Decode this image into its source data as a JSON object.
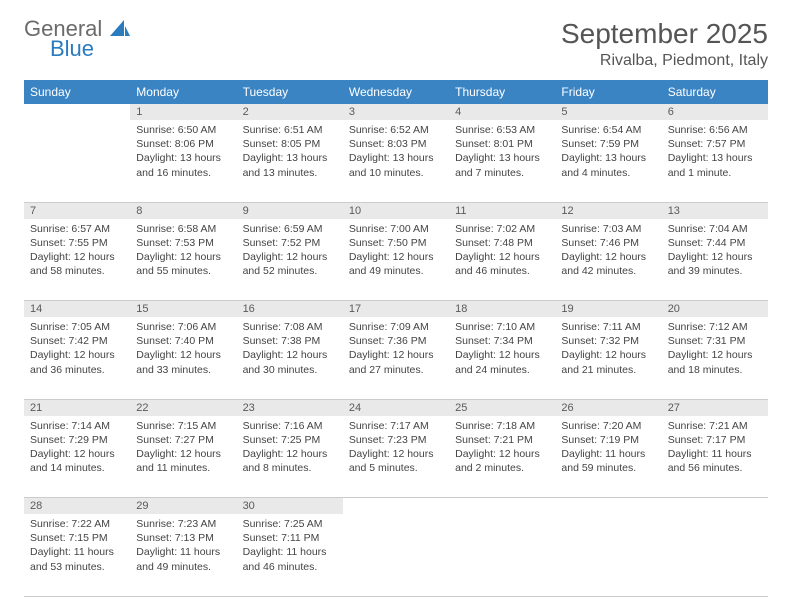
{
  "brand": {
    "name1": "General",
    "name2": "Blue",
    "accent": "#2b7bbf",
    "grey": "#6b6b6b"
  },
  "title": "September 2025",
  "location": "Rivalba, Piedmont, Italy",
  "header_bg": "#3a84c4",
  "daynum_bg": "#e9e9e9",
  "weekdays": [
    "Sunday",
    "Monday",
    "Tuesday",
    "Wednesday",
    "Thursday",
    "Friday",
    "Saturday"
  ],
  "weeks": [
    {
      "nums": [
        "",
        "1",
        "2",
        "3",
        "4",
        "5",
        "6"
      ],
      "cells": [
        {
          "empty": true
        },
        {
          "sunrise": "6:50 AM",
          "sunset": "8:06 PM",
          "daylight": "13 hours and 16 minutes."
        },
        {
          "sunrise": "6:51 AM",
          "sunset": "8:05 PM",
          "daylight": "13 hours and 13 minutes."
        },
        {
          "sunrise": "6:52 AM",
          "sunset": "8:03 PM",
          "daylight": "13 hours and 10 minutes."
        },
        {
          "sunrise": "6:53 AM",
          "sunset": "8:01 PM",
          "daylight": "13 hours and 7 minutes."
        },
        {
          "sunrise": "6:54 AM",
          "sunset": "7:59 PM",
          "daylight": "13 hours and 4 minutes."
        },
        {
          "sunrise": "6:56 AM",
          "sunset": "7:57 PM",
          "daylight": "13 hours and 1 minute."
        }
      ]
    },
    {
      "nums": [
        "7",
        "8",
        "9",
        "10",
        "11",
        "12",
        "13"
      ],
      "cells": [
        {
          "sunrise": "6:57 AM",
          "sunset": "7:55 PM",
          "daylight": "12 hours and 58 minutes."
        },
        {
          "sunrise": "6:58 AM",
          "sunset": "7:53 PM",
          "daylight": "12 hours and 55 minutes."
        },
        {
          "sunrise": "6:59 AM",
          "sunset": "7:52 PM",
          "daylight": "12 hours and 52 minutes."
        },
        {
          "sunrise": "7:00 AM",
          "sunset": "7:50 PM",
          "daylight": "12 hours and 49 minutes."
        },
        {
          "sunrise": "7:02 AM",
          "sunset": "7:48 PM",
          "daylight": "12 hours and 46 minutes."
        },
        {
          "sunrise": "7:03 AM",
          "sunset": "7:46 PM",
          "daylight": "12 hours and 42 minutes."
        },
        {
          "sunrise": "7:04 AM",
          "sunset": "7:44 PM",
          "daylight": "12 hours and 39 minutes."
        }
      ]
    },
    {
      "nums": [
        "14",
        "15",
        "16",
        "17",
        "18",
        "19",
        "20"
      ],
      "cells": [
        {
          "sunrise": "7:05 AM",
          "sunset": "7:42 PM",
          "daylight": "12 hours and 36 minutes."
        },
        {
          "sunrise": "7:06 AM",
          "sunset": "7:40 PM",
          "daylight": "12 hours and 33 minutes."
        },
        {
          "sunrise": "7:08 AM",
          "sunset": "7:38 PM",
          "daylight": "12 hours and 30 minutes."
        },
        {
          "sunrise": "7:09 AM",
          "sunset": "7:36 PM",
          "daylight": "12 hours and 27 minutes."
        },
        {
          "sunrise": "7:10 AM",
          "sunset": "7:34 PM",
          "daylight": "12 hours and 24 minutes."
        },
        {
          "sunrise": "7:11 AM",
          "sunset": "7:32 PM",
          "daylight": "12 hours and 21 minutes."
        },
        {
          "sunrise": "7:12 AM",
          "sunset": "7:31 PM",
          "daylight": "12 hours and 18 minutes."
        }
      ]
    },
    {
      "nums": [
        "21",
        "22",
        "23",
        "24",
        "25",
        "26",
        "27"
      ],
      "cells": [
        {
          "sunrise": "7:14 AM",
          "sunset": "7:29 PM",
          "daylight": "12 hours and 14 minutes."
        },
        {
          "sunrise": "7:15 AM",
          "sunset": "7:27 PM",
          "daylight": "12 hours and 11 minutes."
        },
        {
          "sunrise": "7:16 AM",
          "sunset": "7:25 PM",
          "daylight": "12 hours and 8 minutes."
        },
        {
          "sunrise": "7:17 AM",
          "sunset": "7:23 PM",
          "daylight": "12 hours and 5 minutes."
        },
        {
          "sunrise": "7:18 AM",
          "sunset": "7:21 PM",
          "daylight": "12 hours and 2 minutes."
        },
        {
          "sunrise": "7:20 AM",
          "sunset": "7:19 PM",
          "daylight": "11 hours and 59 minutes."
        },
        {
          "sunrise": "7:21 AM",
          "sunset": "7:17 PM",
          "daylight": "11 hours and 56 minutes."
        }
      ]
    },
    {
      "nums": [
        "28",
        "29",
        "30",
        "",
        "",
        "",
        ""
      ],
      "cells": [
        {
          "sunrise": "7:22 AM",
          "sunset": "7:15 PM",
          "daylight": "11 hours and 53 minutes."
        },
        {
          "sunrise": "7:23 AM",
          "sunset": "7:13 PM",
          "daylight": "11 hours and 49 minutes."
        },
        {
          "sunrise": "7:25 AM",
          "sunset": "7:11 PM",
          "daylight": "11 hours and 46 minutes."
        },
        {
          "empty": true
        },
        {
          "empty": true
        },
        {
          "empty": true
        },
        {
          "empty": true
        }
      ]
    }
  ],
  "labels": {
    "sunrise": "Sunrise:",
    "sunset": "Sunset:",
    "daylight": "Daylight:"
  }
}
